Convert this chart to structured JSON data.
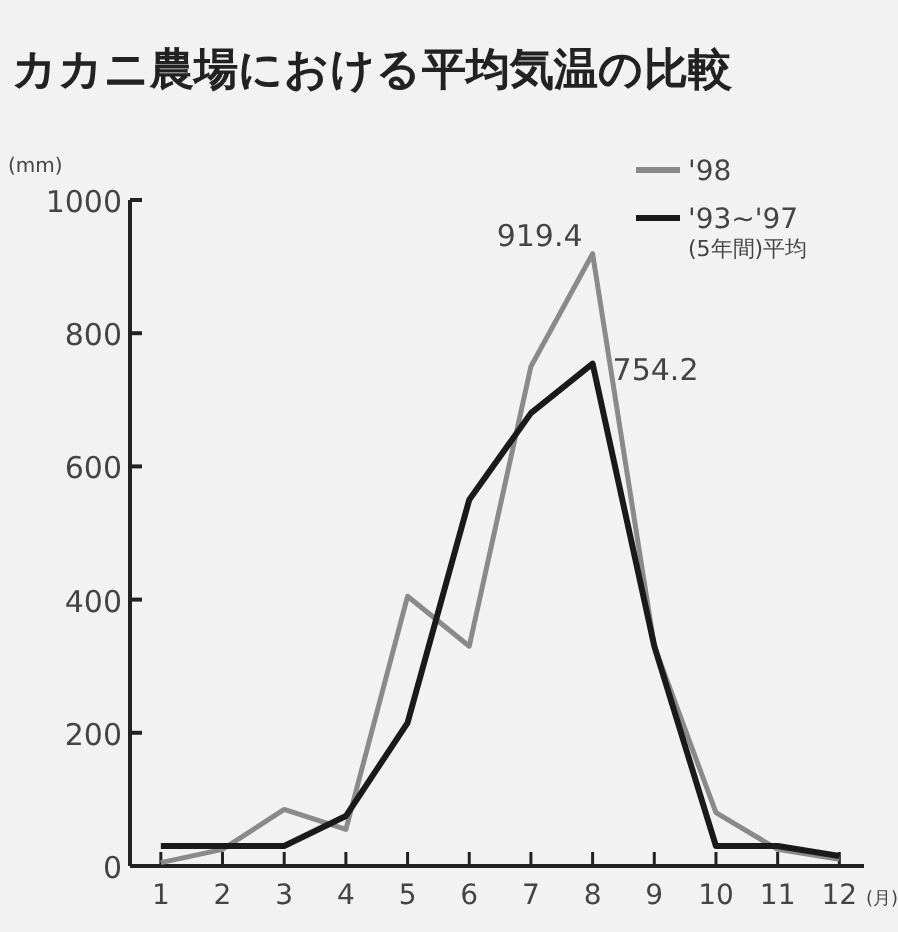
{
  "chart_data": {
    "type": "line",
    "title": "カカニ農場における平均気温の比較",
    "ylabel": "(mm)",
    "xlabel": "(月)",
    "x": [
      1,
      2,
      3,
      4,
      5,
      6,
      7,
      8,
      9,
      10,
      11,
      12
    ],
    "series": [
      {
        "name": "'98",
        "color": "#8a8a8a",
        "values": [
          5,
          25,
          85,
          55,
          405,
          330,
          750,
          919.4,
          330,
          80,
          25,
          10
        ]
      },
      {
        "name": "'93~'97\n(5年間)平均",
        "color": "#1a1a1a",
        "values": [
          30,
          30,
          30,
          75,
          215,
          550,
          680,
          754.2,
          330,
          30,
          30,
          15
        ]
      }
    ],
    "annotations": [
      {
        "text": "919.4",
        "x": 8,
        "y": 919.4
      },
      {
        "text": "754.2",
        "x": 8,
        "y": 754.2
      }
    ],
    "xlim": [
      0.5,
      12.4
    ],
    "ylim": [
      0,
      1000
    ],
    "xticks": [
      1,
      2,
      3,
      4,
      5,
      6,
      7,
      8,
      9,
      10,
      11,
      12
    ],
    "yticks": [
      0,
      200,
      400,
      600,
      800,
      1000
    ],
    "grid": false,
    "legend": "top right",
    "marker": "none",
    "line_style": "solid"
  }
}
